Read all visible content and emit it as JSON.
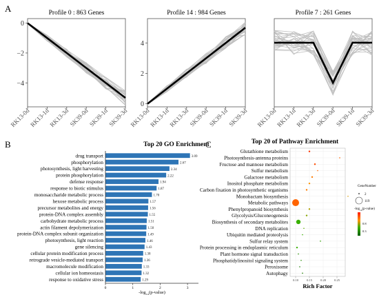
{
  "panels": {
    "a": "A",
    "b": "B",
    "c": "C"
  },
  "chart_data": [
    {
      "type": "line",
      "title": "Profile 0 : 863 Genes",
      "categories": [
        "RK13-0d",
        "RK13-1d",
        "RK13-3d",
        "SK39-0d",
        "SK39-1d",
        "SK39-3d"
      ],
      "y": [
        0,
        -1,
        -2,
        -3,
        -4,
        -5
      ],
      "ylim": [
        -5.6,
        0.3
      ],
      "yticks": [
        0,
        -2,
        -4
      ],
      "ytick_labels": [
        "0",
        "−2",
        "−4"
      ],
      "line_color": "#000000",
      "band_color": "#c0c0c0"
    },
    {
      "type": "line",
      "title": "Profile 14 : 984 Genes",
      "categories": [
        "RK13-0d",
        "RK13-1d",
        "RK13-3d",
        "SK39-0d",
        "SK39-1d",
        "SK39-3d"
      ],
      "y": [
        0,
        1,
        2,
        3,
        4,
        5
      ],
      "ylim": [
        -0.2,
        5.6
      ],
      "yticks": [
        0,
        2,
        4
      ],
      "ytick_labels": [
        "0",
        "2",
        "4"
      ],
      "line_color": "#000000",
      "band_color": "#c0c0c0"
    },
    {
      "type": "line",
      "title": "Profile 7 : 261 Genes",
      "categories": [
        "RK13-0d",
        "RK13-1d",
        "RK13-3d",
        "SK39-0d",
        "SK39-1d",
        "SK39-3d"
      ],
      "y": [
        0,
        0,
        0,
        -1,
        0,
        0
      ],
      "ylim": [
        -1.6,
        0.6
      ],
      "yticks": [],
      "ytick_labels": [],
      "line_color": "#000000",
      "band_color": "#c0c0c0"
    },
    {
      "type": "bar",
      "orientation": "horizontal",
      "title": "Top 20 GO Enrichment",
      "xlabel": "-log10(p-value)",
      "xlabel_parts": {
        "pre": "-log",
        "sub": "10",
        "post": "(p-value)"
      },
      "xlim": [
        0,
        3.4
      ],
      "xticks": [
        0,
        1,
        2,
        3
      ],
      "bar_color": "#2e75b6",
      "categories": [
        "drug transport",
        "phosphorylation",
        "photosynthesis, light harvesting",
        "protein phosphorylation",
        "defense response",
        "response to biotic stimulus",
        "monosaccharide metabolic process",
        "hexose metabolic process",
        "precursor metabolites and energy",
        "protein-DNA complex assembly",
        "carbohydrate metabolic process",
        "actin filament depolymerization",
        "protein-DNA complex subunit organization",
        "photosynthesis, light reaction",
        "gene silencing",
        "cellular protein modification process",
        "retrograde vesicle-mediated transport",
        "macromolecule modification",
        "cellular ion homeostasis",
        "response to oxidative stress"
      ],
      "values": [
        3.09,
        2.67,
        2.34,
        2.22,
        1.94,
        1.87,
        1.7,
        1.57,
        1.56,
        1.55,
        1.51,
        1.5,
        1.49,
        1.46,
        1.43,
        1.38,
        1.36,
        1.33,
        1.32,
        1.29
      ],
      "value_labels": [
        "3.09",
        "2.67",
        "2.34",
        "2.22",
        "1.94",
        "1.87",
        "1.70",
        "1.57",
        "1.56",
        "1.55",
        "1.51",
        "1.50",
        "1.49",
        "1.46",
        "1.43",
        "1.38",
        "1.36",
        "1.33",
        "1.32",
        "1.29"
      ]
    },
    {
      "type": "scatter",
      "title": "Top 20 of Pathway Enrichment",
      "xlabel": "Rich Factor",
      "xlim": [
        0.08,
        0.28
      ],
      "xticks": [
        0.1,
        0.15,
        0.2,
        0.25
      ],
      "xtick_labels": [
        "0.10",
        "0.15",
        "0.20",
        "0.25"
      ],
      "categories": [
        "Glutathione metabolism",
        "Photosynthesis-antenna proteins",
        "Fructose and mannose metabolism",
        "Sulfur metabolism",
        "Galactose metabolism",
        "Inositol phosphate metabolism",
        "Carbon fixation in photosynthetic organisms",
        "Monobactam biosynthesis",
        "Metabolic pathways",
        "Phenylpropanoid biosynthesis",
        "Glycolysis/Gluconeogenesis",
        "Biosynthesis of secondary metabolites",
        "DNA replication",
        "Ubiquitin mediated proteolysis",
        "Sulfur relay system",
        "Protein processing in endoplasmic reticulum",
        "Plant hormone signal transduction",
        "Phosphatidylinositol signaling system",
        "Peroxisome",
        "Autophagy"
      ],
      "rich_factor": [
        0.15,
        0.26,
        0.17,
        0.18,
        0.16,
        0.15,
        0.14,
        0.29,
        0.1,
        0.15,
        0.14,
        0.11,
        0.13,
        0.125,
        0.19,
        0.105,
        0.11,
        0.12,
        0.115,
        0.125
      ],
      "gene_number": [
        3,
        2,
        3,
        2,
        3,
        3,
        3,
        2,
        119,
        3,
        3,
        40,
        2,
        2,
        2,
        3,
        2,
        2,
        2,
        2
      ],
      "neg_log10_p": [
        1.4,
        1.2,
        1.3,
        1.2,
        1.1,
        1.0,
        1.1,
        0.9,
        1.2,
        0.8,
        0.7,
        0.5,
        0.6,
        0.5,
        0.4,
        0.5,
        0.3,
        0.3,
        0.2,
        0.2
      ],
      "legend_size": {
        "title": "GeneNumber",
        "labels": [
          "2",
          "119"
        ],
        "values": [
          2,
          119
        ]
      },
      "legend_color": {
        "title": "-log10(p-value)",
        "title_parts": {
          "pre": "-log",
          "sub": "10",
          "post": "(p-value)"
        },
        "labels": [
          "0.8",
          "0.3"
        ],
        "values": [
          0.8,
          0.3
        ],
        "range": [
          0,
          1.5
        ],
        "colors": [
          "#ff1a00",
          "#ff9500",
          "#38b000",
          "#0b5e00"
        ]
      }
    }
  ]
}
